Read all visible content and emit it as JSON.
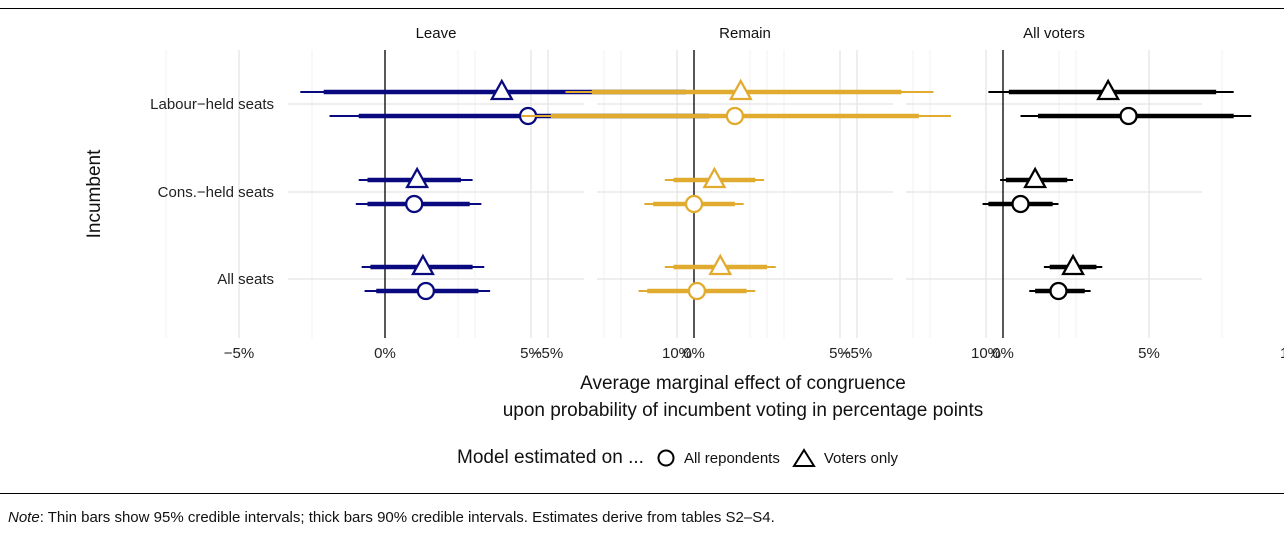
{
  "chart_data": {
    "type": "scatter",
    "facets": [
      "Leave",
      "Remain",
      "All voters"
    ],
    "facet_colors": [
      "#0a0a80",
      "#e0ab2e",
      "#000000"
    ],
    "categories": [
      "Labour−held seats",
      "Cons.−held seats",
      "All seats"
    ],
    "ylabel": "Incumbent",
    "xlabel_line1": "Average marginal effect of congruence",
    "xlabel_line2": "upon probability of incumbent voting in percentage points",
    "x_ticks": [
      -5,
      0,
      5,
      10
    ],
    "x_tick_labels": [
      "−5%",
      "0%",
      "5%",
      "10%"
    ],
    "xlim": [
      -7.5,
      12.5
    ],
    "reference_line": 0,
    "grid": true,
    "legend": {
      "title": "Model estimated on ...",
      "position": "bottom",
      "items": [
        {
          "label": "All repondents",
          "shape": "circle"
        },
        {
          "label": "Voters only",
          "shape": "triangle"
        }
      ]
    },
    "series": [
      {
        "name": "All repondents",
        "shape": "circle",
        "values": [
          [
            {
              "est": 4.9,
              "lo95": -1.9,
              "hi95": 12.8,
              "lo90": -0.9,
              "hi90": 11.1
            },
            {
              "est": 1.0,
              "lo95": -1.0,
              "hi95": 3.3,
              "lo90": -0.6,
              "hi90": 2.9
            },
            {
              "est": 1.4,
              "lo95": -0.7,
              "hi95": 3.6,
              "lo90": -0.3,
              "hi90": 3.2
            }
          ],
          [
            {
              "est": 1.4,
              "lo95": -5.9,
              "hi95": 8.8,
              "lo90": -4.9,
              "hi90": 7.7
            },
            {
              "est": 0.0,
              "lo95": -1.7,
              "hi95": 1.7,
              "lo90": -1.4,
              "hi90": 1.4
            },
            {
              "est": 0.1,
              "lo95": -1.9,
              "hi95": 2.1,
              "lo90": -1.6,
              "hi90": 1.8
            }
          ],
          [
            {
              "est": 4.3,
              "lo95": 0.6,
              "hi95": 8.5,
              "lo90": 1.2,
              "hi90": 7.9
            },
            {
              "est": 0.6,
              "lo95": -0.7,
              "hi95": 1.9,
              "lo90": -0.5,
              "hi90": 1.7
            },
            {
              "est": 1.9,
              "lo95": 0.9,
              "hi95": 3.0,
              "lo90": 1.1,
              "hi90": 2.8
            }
          ]
        ]
      },
      {
        "name": "Voters only",
        "shape": "triangle",
        "values": [
          [
            {
              "est": 4.0,
              "lo95": -2.9,
              "hi95": 11.6,
              "lo90": -2.1,
              "hi90": 10.3
            },
            {
              "est": 1.1,
              "lo95": -0.9,
              "hi95": 3.0,
              "lo90": -0.6,
              "hi90": 2.6
            },
            {
              "est": 1.3,
              "lo95": -0.8,
              "hi95": 3.4,
              "lo90": -0.5,
              "hi90": 3.0
            }
          ],
          [
            {
              "est": 1.6,
              "lo95": -4.4,
              "hi95": 8.2,
              "lo90": -3.5,
              "hi90": 7.1
            },
            {
              "est": 0.7,
              "lo95": -1.0,
              "hi95": 2.4,
              "lo90": -0.7,
              "hi90": 2.1
            },
            {
              "est": 0.9,
              "lo95": -1.0,
              "hi95": 2.8,
              "lo90": -0.7,
              "hi90": 2.5
            }
          ],
          [
            {
              "est": 3.6,
              "lo95": -0.5,
              "hi95": 7.9,
              "lo90": 0.2,
              "hi90": 7.3
            },
            {
              "est": 1.1,
              "lo95": -0.1,
              "hi95": 2.4,
              "lo90": 0.1,
              "hi90": 2.2
            },
            {
              "est": 2.4,
              "lo95": 1.4,
              "hi95": 3.4,
              "lo90": 1.6,
              "hi90": 3.2
            }
          ]
        ]
      }
    ]
  },
  "note": {
    "label": "Note",
    "text": ": Thin bars show 95% credible intervals; thick bars 90% credible intervals. Estimates derive from tables S2–S4."
  }
}
